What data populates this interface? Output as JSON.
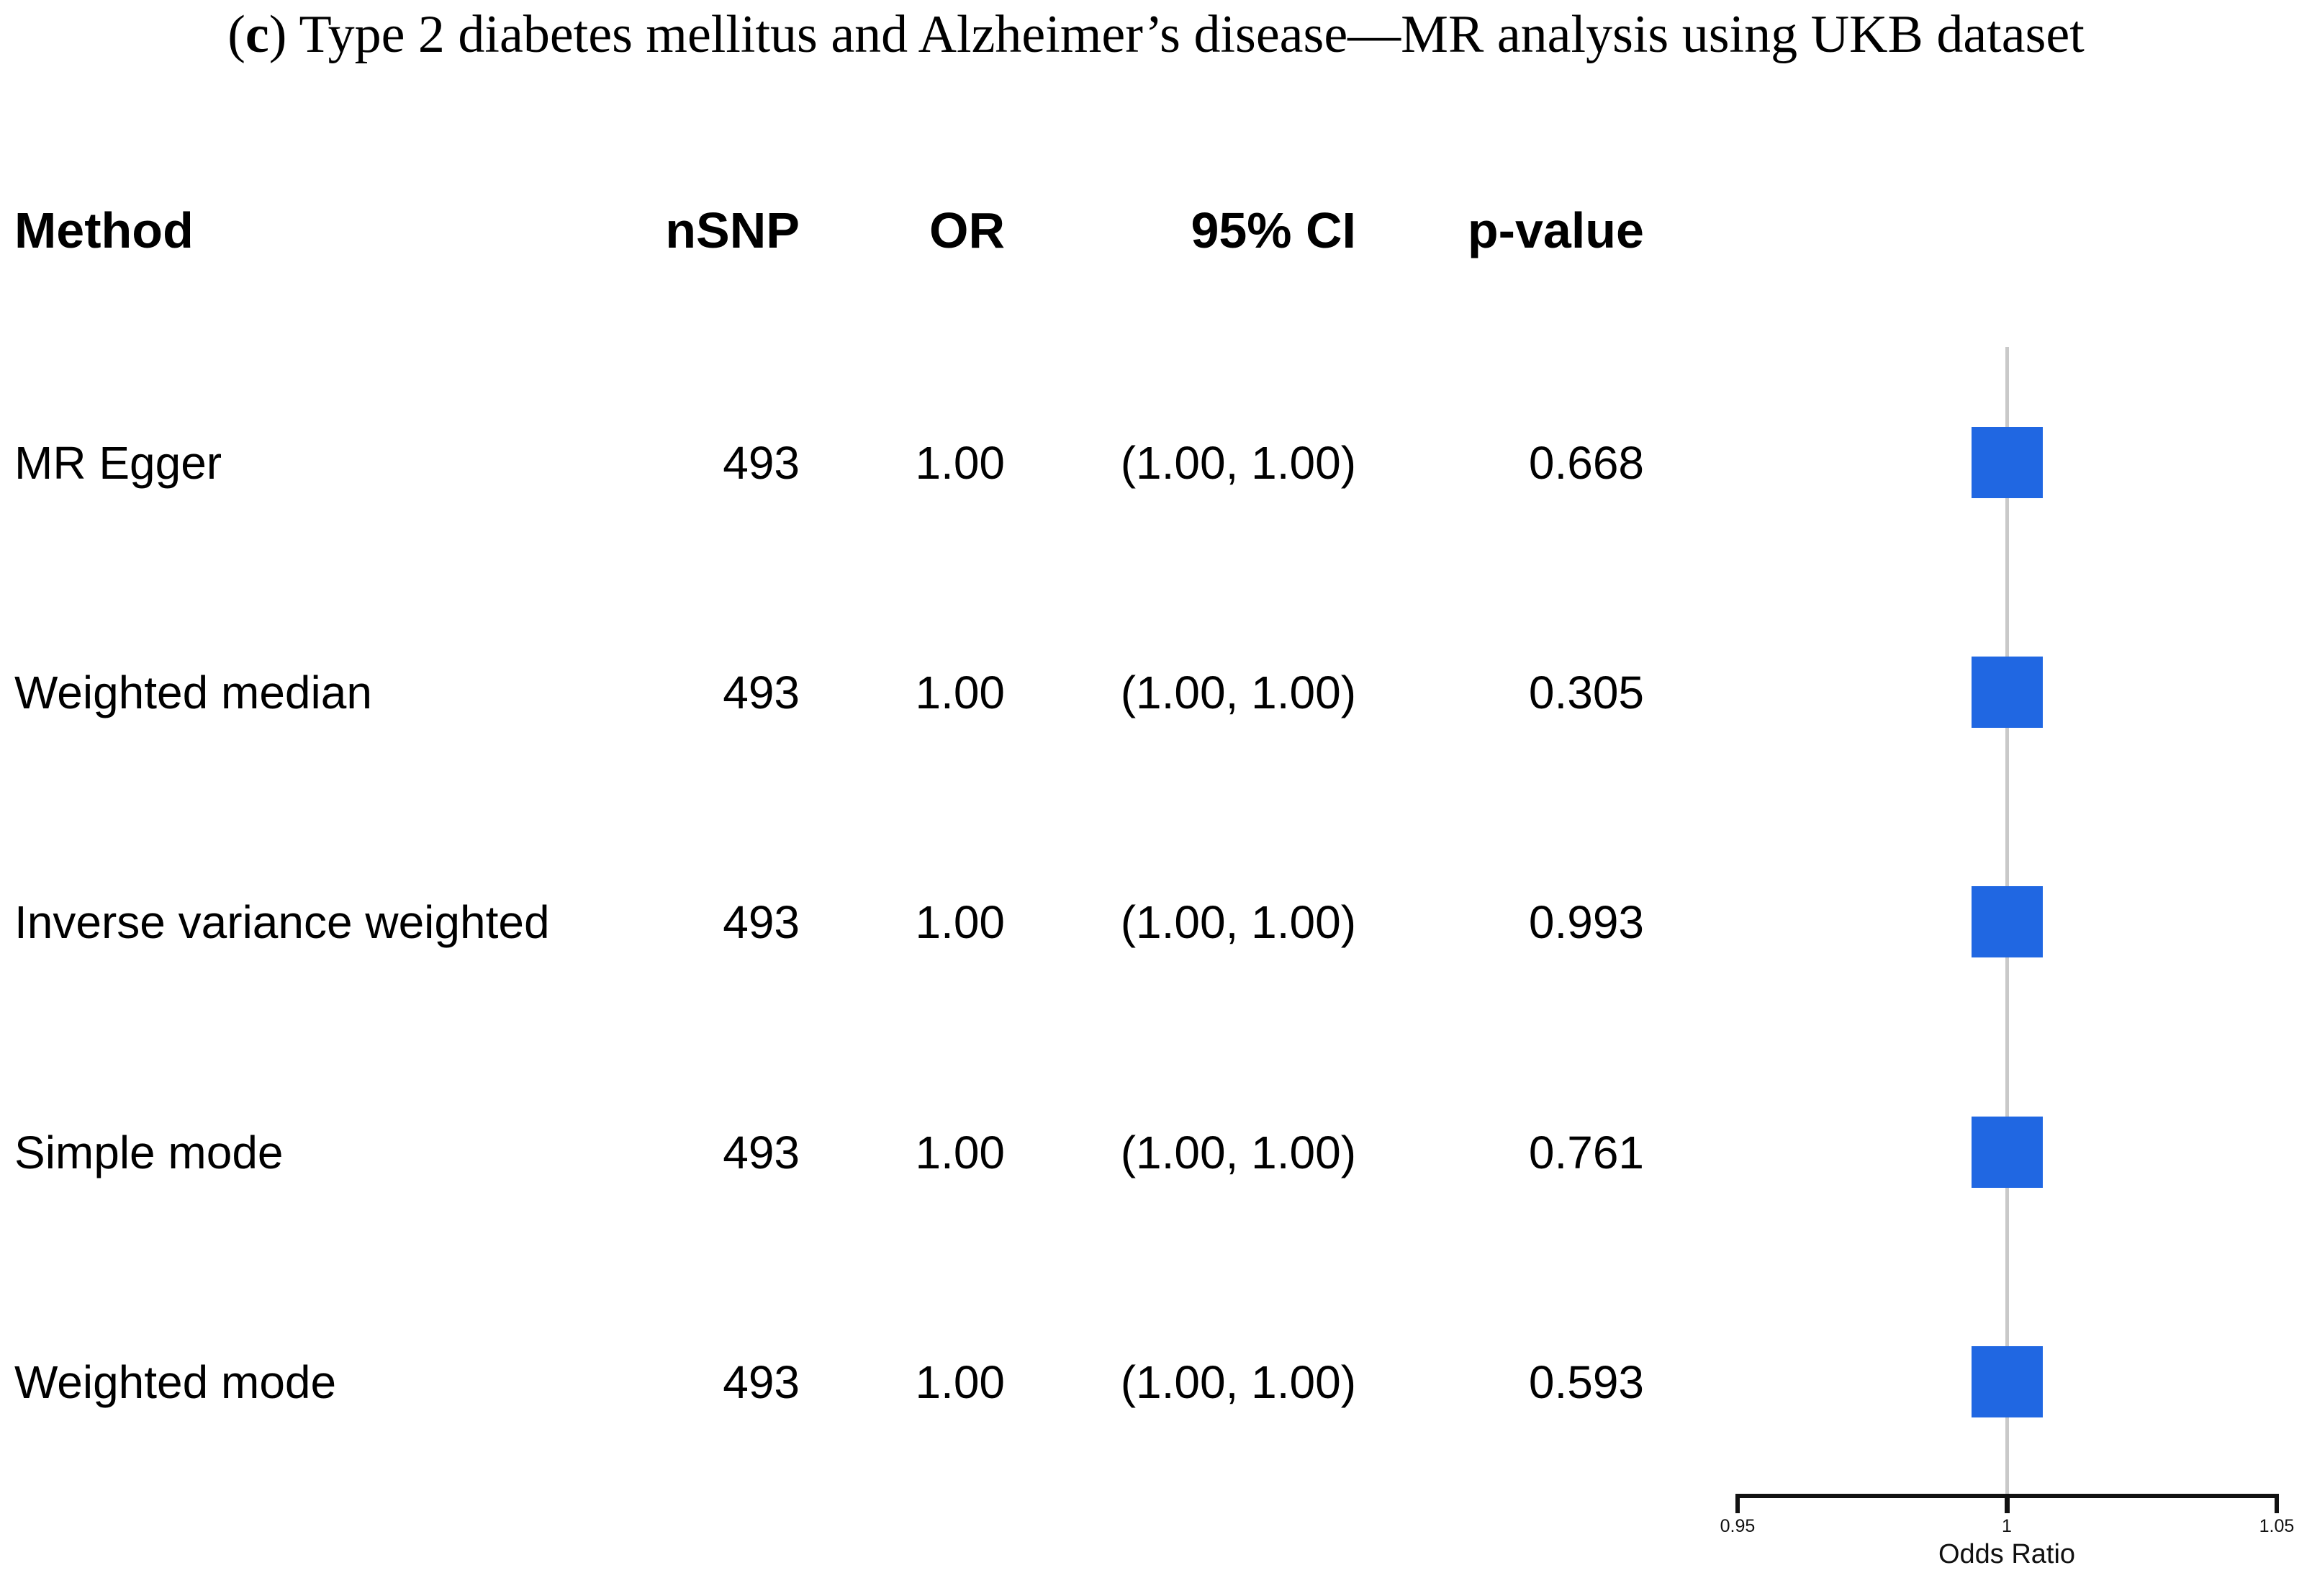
{
  "title": {
    "prefix": "(",
    "letter": "c",
    "suffix": ") ",
    "text": "Type 2 diabetes mellitus and Alzheimer’s disease—MR analysis using UKB dataset"
  },
  "columns": {
    "method": "Method",
    "nsnp": "nSNP",
    "or": "OR",
    "ci": "95% CI",
    "pvalue": "p-value"
  },
  "rows": [
    {
      "method": "MR Egger",
      "nsnp": "493",
      "or": "1.00",
      "ci": "(1.00, 1.00)",
      "pvalue": "0.668"
    },
    {
      "method": "Weighted median",
      "nsnp": "493",
      "or": "1.00",
      "ci": "(1.00, 1.00)",
      "pvalue": "0.305"
    },
    {
      "method": "Inverse variance weighted",
      "nsnp": "493",
      "or": "1.00",
      "ci": "(1.00, 1.00)",
      "pvalue": "0.993"
    },
    {
      "method": "Simple mode",
      "nsnp": "493",
      "or": "1.00",
      "ci": "(1.00, 1.00)",
      "pvalue": "0.761"
    },
    {
      "method": "Weighted mode",
      "nsnp": "493",
      "or": "1.00",
      "ci": "(1.00, 1.00)",
      "pvalue": "0.593"
    }
  ],
  "axis": {
    "ticks": [
      "0.95",
      "1",
      "1.05"
    ],
    "label": "Odds Ratio"
  },
  "colors": {
    "marker": "#2067e2",
    "reference_line": "#c9c9c9",
    "axis": "#111111"
  },
  "chart_data": {
    "type": "forest",
    "title": "(c) Type 2 diabetes mellitus and Alzheimer’s disease—MR analysis using UKB dataset",
    "xlabel": "Odds Ratio",
    "xlim": [
      0.95,
      1.05
    ],
    "x_ticks": [
      0.95,
      1,
      1.05
    ],
    "reference_line": 1,
    "marker": "square",
    "marker_color": "#2067e2",
    "rows": [
      {
        "method": "MR Egger",
        "nsnp": 493,
        "or": 1.0,
        "ci_low": 1.0,
        "ci_high": 1.0,
        "p_value": 0.668
      },
      {
        "method": "Weighted median",
        "nsnp": 493,
        "or": 1.0,
        "ci_low": 1.0,
        "ci_high": 1.0,
        "p_value": 0.305
      },
      {
        "method": "Inverse variance weighted",
        "nsnp": 493,
        "or": 1.0,
        "ci_low": 1.0,
        "ci_high": 1.0,
        "p_value": 0.993
      },
      {
        "method": "Simple mode",
        "nsnp": 493,
        "or": 1.0,
        "ci_low": 1.0,
        "ci_high": 1.0,
        "p_value": 0.761
      },
      {
        "method": "Weighted mode",
        "nsnp": 493,
        "or": 1.0,
        "ci_low": 1.0,
        "ci_high": 1.0,
        "p_value": 0.593
      }
    ]
  }
}
